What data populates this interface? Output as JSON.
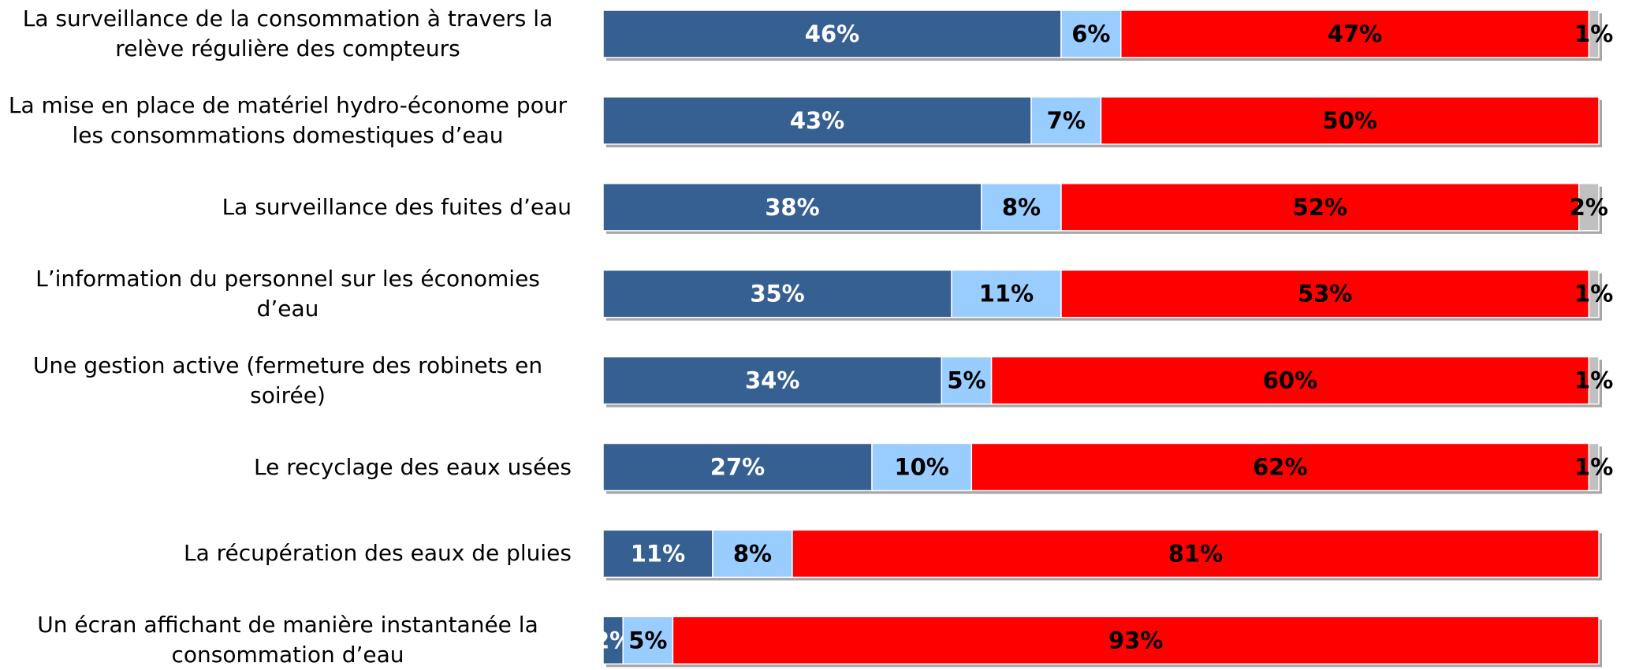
{
  "chart_data": {
    "type": "stacked_bar_horizontal",
    "categories": [
      "La surveillance de la consommation à travers la relève régulière des compteurs",
      "La mise en place de matériel hydro-économe pour les consommations domestiques d’eau",
      "La surveillance des fuites d’eau",
      "L’information du personnel sur les économies d’eau",
      "Une gestion active (fermeture des robinets en soirée)",
      "Le recyclage des eaux usées",
      "La récupération des eaux de pluies",
      "Un écran affichant de manière instantanée la consommation d’eau"
    ],
    "xlim": [
      0,
      100
    ],
    "series": [
      {
        "color": "#376092",
        "label_color": "#ffffff",
        "values": [
          46,
          43,
          38,
          35,
          34,
          27,
          11,
          2
        ],
        "value_labels": [
          "46%",
          "43%",
          "38%",
          "35%",
          "34%",
          "27%",
          "11%",
          "2%"
        ]
      },
      {
        "color": "#99ccff",
        "label_color": "#000000",
        "values": [
          6,
          7,
          8,
          11,
          5,
          10,
          8,
          5
        ],
        "value_labels": [
          "6%",
          "7%",
          "8%",
          "11%",
          "5%",
          "10%",
          "8%",
          "5%"
        ]
      },
      {
        "color": "#ff0000",
        "label_color": "#000000",
        "values": [
          47,
          50,
          52,
          53,
          60,
          62,
          81,
          93
        ],
        "value_labels": [
          "47%",
          "50%",
          "52%",
          "53%",
          "60%",
          "62%",
          "81%",
          "93%"
        ]
      },
      {
        "color": "#c0c0c0",
        "label_color": "#000000",
        "values": [
          1,
          0,
          2,
          1,
          1,
          1,
          0,
          0
        ],
        "value_labels": [
          "1%",
          null,
          "2%",
          "1%",
          "1%",
          "1%",
          null,
          null
        ]
      }
    ]
  }
}
